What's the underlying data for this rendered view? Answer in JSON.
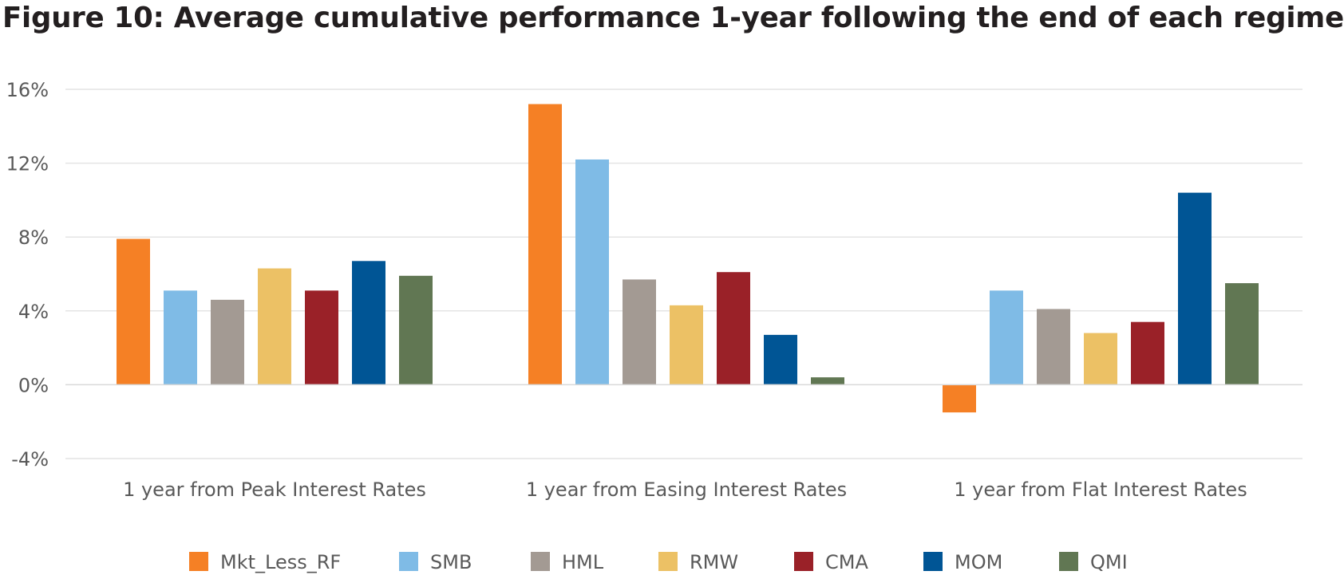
{
  "chart_data": {
    "type": "bar",
    "title": "Figure 10: Average cumulative performance 1-year following the end of each regime",
    "xlabel": "",
    "ylabel": "",
    "categories": [
      "1 year from Peak Interest Rates",
      "1 year from Easing Interest Rates",
      "1 year from Flat Interest Rates"
    ],
    "ylim": [
      -4,
      16
    ],
    "yticks": [
      -4,
      0,
      4,
      8,
      12,
      16
    ],
    "ytick_labels": [
      "-4%",
      "0%",
      "4%",
      "8%",
      "12%",
      "16%"
    ],
    "grid": true,
    "legend_position": "bottom",
    "series": [
      {
        "name": "Mkt_Less_RF",
        "color": "#f58025",
        "values": [
          7.9,
          15.2,
          -1.5
        ]
      },
      {
        "name": "SMB",
        "color": "#7fbbe6",
        "values": [
          5.1,
          12.2,
          5.1
        ]
      },
      {
        "name": "HML",
        "color": "#a39a93",
        "values": [
          4.6,
          5.7,
          4.1
        ]
      },
      {
        "name": "RMW",
        "color": "#ecc165",
        "values": [
          6.3,
          4.3,
          2.8
        ]
      },
      {
        "name": "CMA",
        "color": "#9a2128",
        "values": [
          5.1,
          6.1,
          3.4
        ]
      },
      {
        "name": "MOM",
        "color": "#005595",
        "values": [
          6.7,
          2.7,
          10.4
        ]
      },
      {
        "name": "QMI",
        "color": "#617753",
        "values": [
          5.9,
          0.4,
          5.5
        ]
      }
    ]
  }
}
